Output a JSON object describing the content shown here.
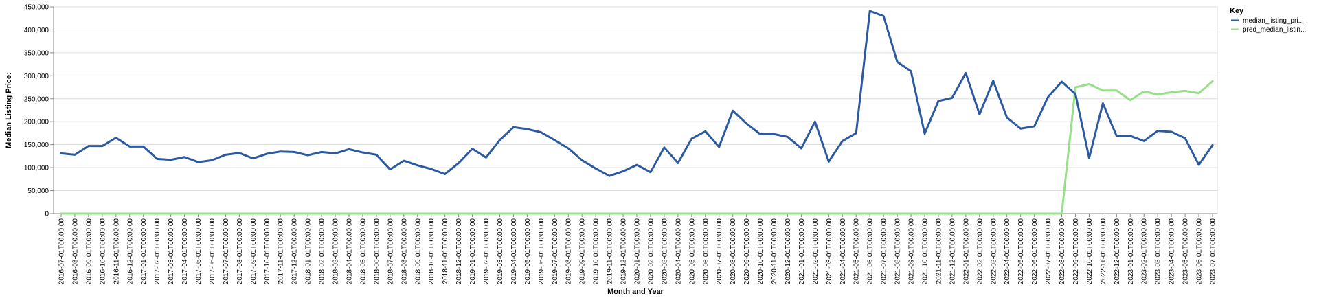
{
  "chart_data": {
    "type": "line",
    "xlabel": "Month and Year",
    "ylabel": "Median Listing Price:",
    "ylim": [
      0,
      450000
    ],
    "y_ticks": [
      "0",
      "50,000",
      "100,000",
      "150,000",
      "200,000",
      "250,000",
      "300,000",
      "350,000",
      "400,000",
      "450,000"
    ],
    "grid": true,
    "legend": {
      "title": "Key",
      "position": "top-right"
    },
    "x": [
      "2016-07-01T00:00:00",
      "2016-08-01T00:00:00",
      "2016-09-01T00:00:00",
      "2016-10-01T00:00:00",
      "2016-11-01T00:00:00",
      "2016-12-01T00:00:00",
      "2017-01-01T00:00:00",
      "2017-02-01T00:00:00",
      "2017-03-01T00:00:00",
      "2017-04-01T00:00:00",
      "2017-05-01T00:00:00",
      "2017-06-01T00:00:00",
      "2017-07-01T00:00:00",
      "2017-08-01T00:00:00",
      "2017-09-01T00:00:00",
      "2017-10-01T00:00:00",
      "2017-11-01T00:00:00",
      "2017-12-01T00:00:00",
      "2018-01-01T00:00:00",
      "2018-02-01T00:00:00",
      "2018-03-01T00:00:00",
      "2018-04-01T00:00:00",
      "2018-05-01T00:00:00",
      "2018-06-01T00:00:00",
      "2018-07-01T00:00:00",
      "2018-08-01T00:00:00",
      "2018-09-01T00:00:00",
      "2018-10-01T00:00:00",
      "2018-11-01T00:00:00",
      "2018-12-01T00:00:00",
      "2019-01-01T00:00:00",
      "2019-02-01T00:00:00",
      "2019-03-01T00:00:00",
      "2019-04-01T00:00:00",
      "2019-05-01T00:00:00",
      "2019-06-01T00:00:00",
      "2019-07-01T00:00:00",
      "2019-08-01T00:00:00",
      "2019-09-01T00:00:00",
      "2019-10-01T00:00:00",
      "2019-11-01T00:00:00",
      "2019-12-01T00:00:00",
      "2020-01-01T00:00:00",
      "2020-02-01T00:00:00",
      "2020-03-01T00:00:00",
      "2020-04-01T00:00:00",
      "2020-05-01T00:00:00",
      "2020-06-01T00:00:00",
      "2020-07-01T00:00:00",
      "2020-08-01T00:00:00",
      "2020-09-01T00:00:00",
      "2020-10-01T00:00:00",
      "2020-11-01T00:00:00",
      "2020-12-01T00:00:00",
      "2021-01-01T00:00:00",
      "2021-02-01T00:00:00",
      "2021-03-01T00:00:00",
      "2021-04-01T00:00:00",
      "2021-05-01T00:00:00",
      "2021-06-01T00:00:00",
      "2021-07-01T00:00:00",
      "2021-08-01T00:00:00",
      "2021-09-01T00:00:00",
      "2021-10-01T00:00:00",
      "2021-11-01T00:00:00",
      "2021-12-01T00:00:00",
      "2022-01-01T00:00:00",
      "2022-02-01T00:00:00",
      "2022-03-01T00:00:00",
      "2022-04-01T00:00:00",
      "2022-05-01T00:00:00",
      "2022-06-01T00:00:00",
      "2022-07-01T00:00:00",
      "2022-08-01T00:00:00",
      "2022-09-01T00:00:00",
      "2022-10-01T00:00:00",
      "2022-11-01T00:00:00",
      "2022-12-01T00:00:00",
      "2023-01-01T00:00:00",
      "2023-02-01T00:00:00",
      "2023-03-01T00:00:00",
      "2023-04-01T00:00:00",
      "2023-05-01T00:00:00",
      "2023-06-01T00:00:00",
      "2023-07-01T00:00:00"
    ],
    "series": [
      {
        "name": "median_listing_pri...",
        "color": "#2c5aa0",
        "values": [
          131000,
          128000,
          147000,
          147000,
          165000,
          146000,
          146000,
          119000,
          117000,
          123000,
          112000,
          116000,
          128000,
          132000,
          120000,
          130000,
          135000,
          134000,
          127000,
          134000,
          131000,
          140000,
          133000,
          128000,
          96000,
          115000,
          105000,
          97000,
          86000,
          110000,
          141000,
          122000,
          160000,
          188000,
          184000,
          177000,
          160000,
          142000,
          116000,
          98000,
          82000,
          92000,
          106000,
          90000,
          144000,
          110000,
          163000,
          179000,
          145000,
          224000,
          196000,
          173000,
          173000,
          167000,
          142000,
          200000,
          113000,
          158000,
          175000,
          441000,
          430000,
          330000,
          310000,
          174000,
          245000,
          252000,
          306000,
          216000,
          289000,
          209000,
          185000,
          190000,
          254000,
          287000,
          260000,
          121000,
          240000,
          169000,
          169000,
          158000,
          180000,
          178000,
          164000,
          106000,
          149000
        ]
      },
      {
        "name": "pred_median_listin...",
        "color": "#98df8a",
        "values": [
          0,
          0,
          0,
          0,
          0,
          0,
          0,
          0,
          0,
          0,
          0,
          0,
          0,
          0,
          0,
          0,
          0,
          0,
          0,
          0,
          0,
          0,
          0,
          0,
          0,
          0,
          0,
          0,
          0,
          0,
          0,
          0,
          0,
          0,
          0,
          0,
          0,
          0,
          0,
          0,
          0,
          0,
          0,
          0,
          0,
          0,
          0,
          0,
          0,
          0,
          0,
          0,
          0,
          0,
          0,
          0,
          0,
          0,
          0,
          0,
          0,
          0,
          0,
          0,
          0,
          0,
          0,
          0,
          0,
          0,
          0,
          0,
          0,
          0,
          275000,
          282000,
          268000,
          268000,
          247000,
          266000,
          259000,
          264000,
          267000,
          262000,
          288000
        ]
      }
    ]
  }
}
